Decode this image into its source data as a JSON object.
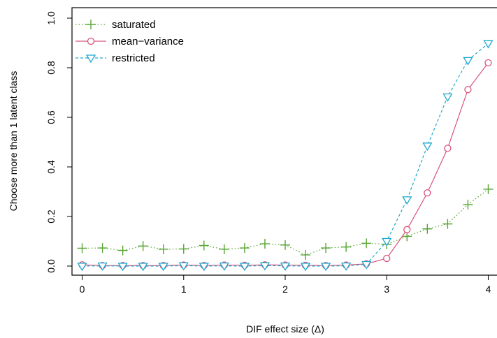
{
  "chart_data": {
    "type": "line",
    "xlabel": "DIF effect size (Δ)",
    "ylabel": "Choose more than 1 latent class",
    "xlim": [
      -0.1,
      4.1
    ],
    "ylim": [
      0,
      1.0
    ],
    "xticks": [
      0,
      1,
      2,
      3,
      4
    ],
    "xtick_labels": [
      "0",
      "1",
      "2",
      "3",
      "4"
    ],
    "yticks": [
      0.0,
      0.2,
      0.4,
      0.6,
      0.8,
      1.0
    ],
    "ytick_labels": [
      "0.0",
      "0.2",
      "0.4",
      "0.6",
      "0.8",
      "1.0"
    ],
    "legend_position": "top-left",
    "x": [
      0,
      0.2,
      0.4,
      0.6,
      0.8,
      1.0,
      1.2,
      1.4,
      1.6,
      1.8,
      2.0,
      2.2,
      2.4,
      2.6,
      2.8,
      3.0,
      3.2,
      3.4,
      3.6,
      3.8,
      4.0
    ],
    "series": [
      {
        "name": "saturated",
        "marker": "plus",
        "line_style": "dotted",
        "color": "#56a532",
        "values": [
          0.072,
          0.073,
          0.063,
          0.081,
          0.068,
          0.069,
          0.083,
          0.068,
          0.073,
          0.09,
          0.085,
          0.045,
          0.073,
          0.077,
          0.092,
          0.088,
          0.12,
          0.15,
          0.17,
          0.248,
          0.31
        ]
      },
      {
        "name": "mean−variance",
        "marker": "circle",
        "line_style": "solid",
        "color": "#d9537a",
        "values": [
          0.005,
          0.002,
          0.002,
          0.002,
          0.002,
          0.004,
          0.002,
          0.004,
          0.003,
          0.005,
          0.004,
          0.003,
          0.002,
          0.004,
          0.009,
          0.031,
          0.147,
          0.295,
          0.475,
          0.712,
          0.82
        ]
      },
      {
        "name": "restricted",
        "marker": "triangle-down",
        "line_style": "dashed",
        "color": "#1fa8cf",
        "values": [
          0.0,
          0.001,
          0.0,
          0.0,
          0.0,
          0.002,
          0.0,
          0.001,
          0.0,
          0.002,
          0.001,
          0.0,
          0.0,
          0.001,
          0.007,
          0.1,
          0.268,
          0.485,
          0.683,
          0.83,
          0.898
        ]
      }
    ]
  }
}
